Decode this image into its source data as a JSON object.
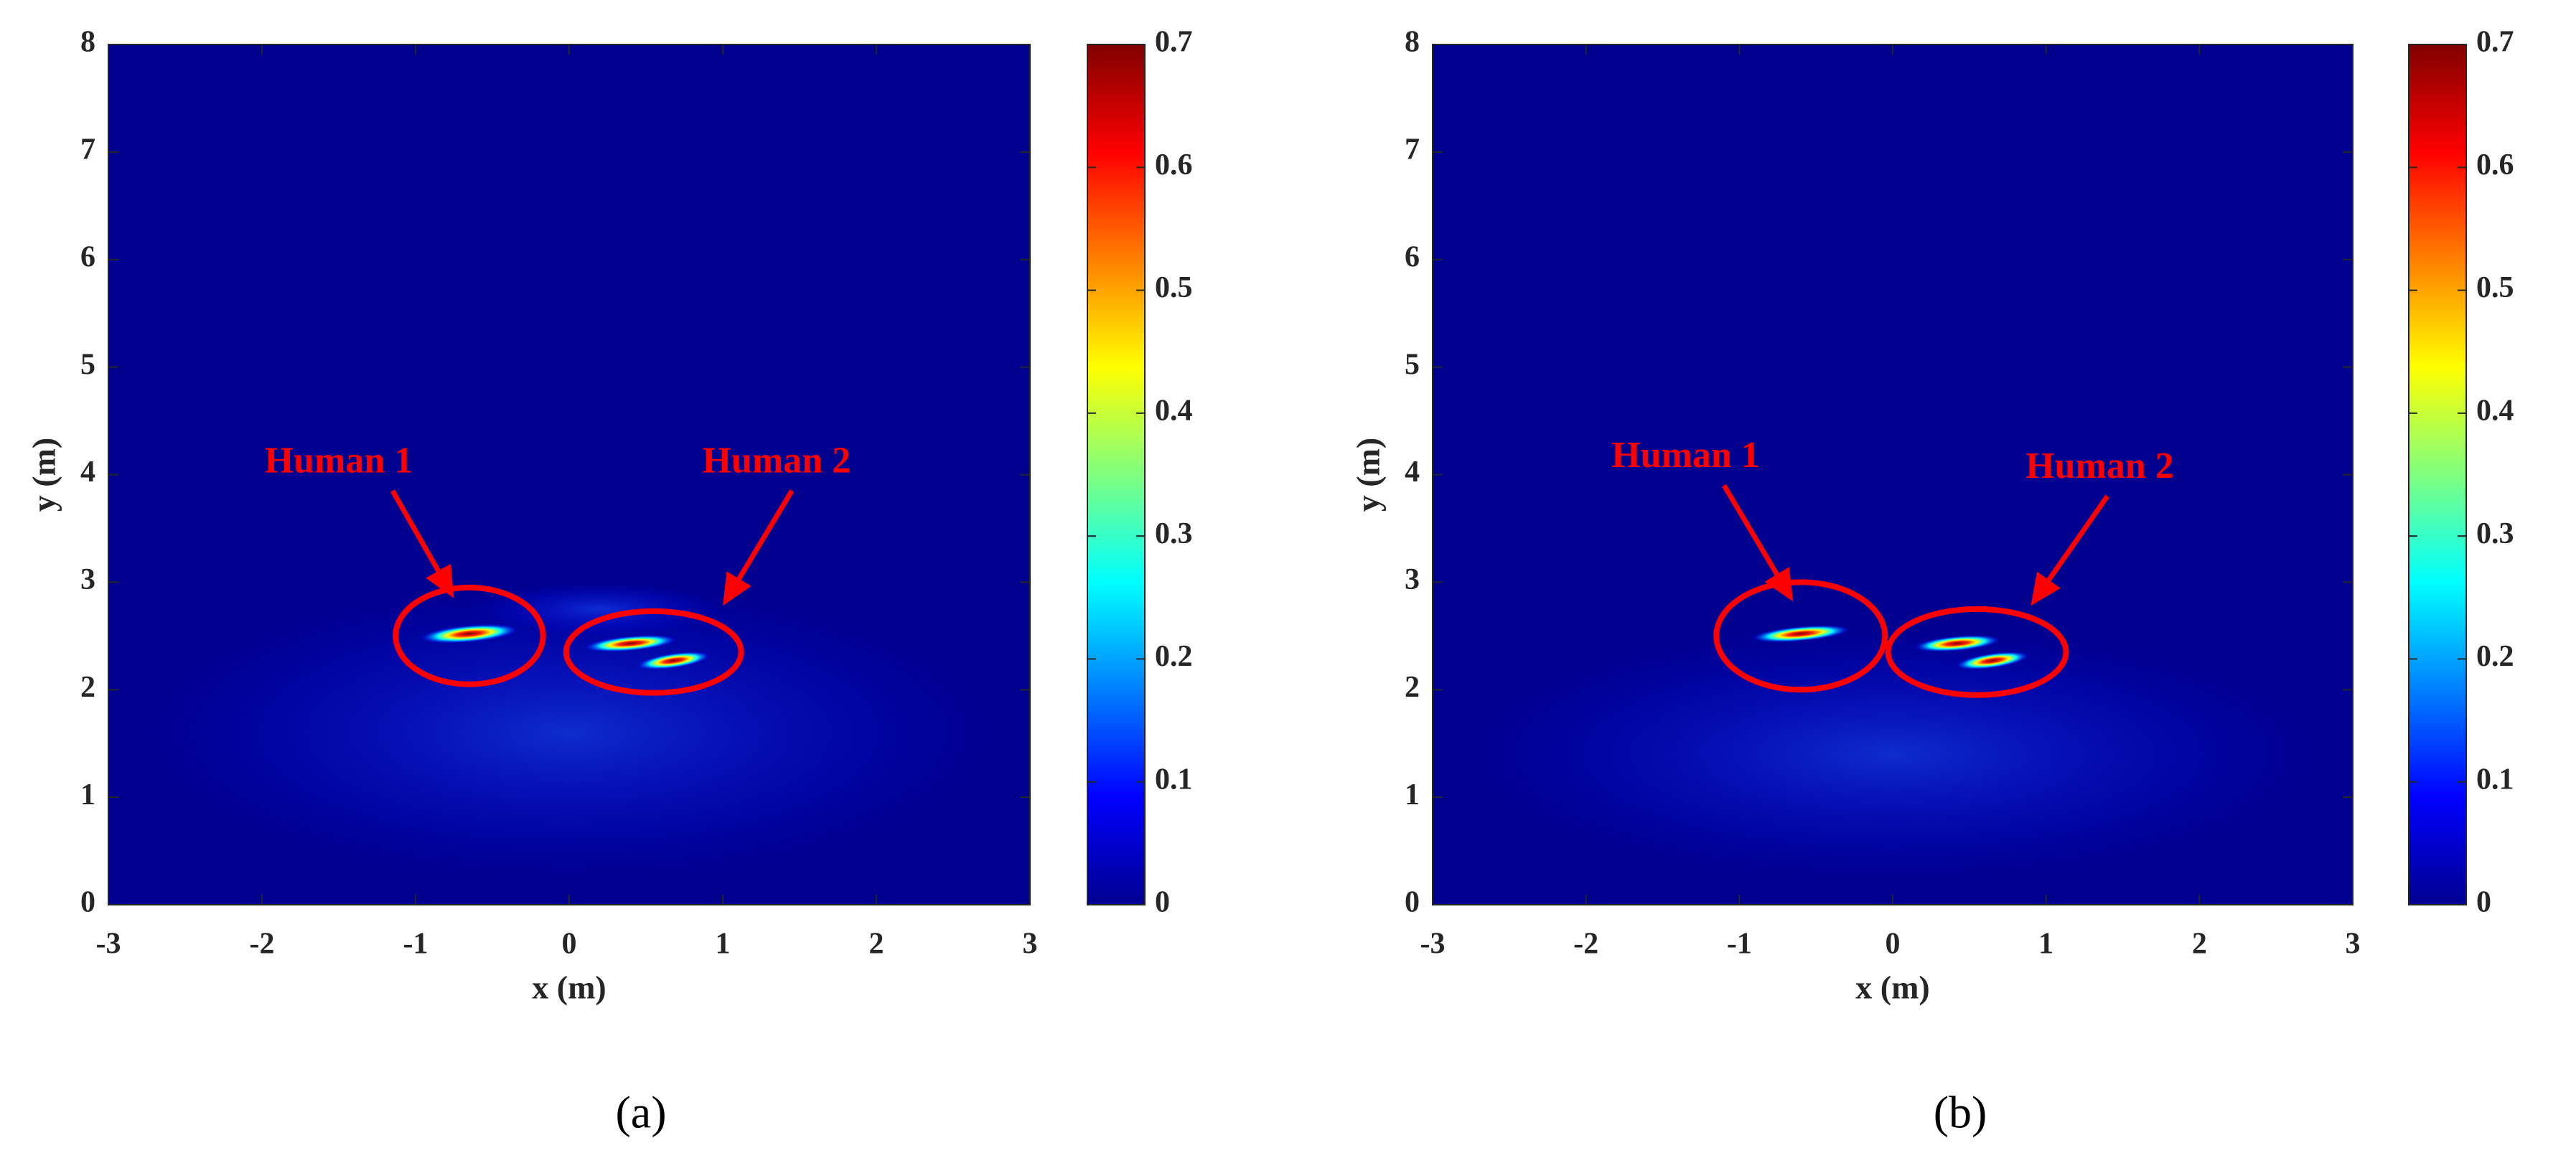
{
  "chart_data": [
    {
      "type": "heatmap",
      "xlabel": "x (m)",
      "ylabel": "y (m)",
      "xlim": [
        -3,
        3
      ],
      "xticks": [
        -3,
        -2,
        -1,
        0,
        1,
        2,
        3
      ],
      "ylim": [
        0,
        8
      ],
      "yticks": [
        0,
        1,
        2,
        3,
        4,
        5,
        6,
        7,
        8
      ],
      "colormap": "jet",
      "clim": [
        0,
        0.7
      ],
      "cticks": [
        0,
        0.1,
        0.2,
        0.3,
        0.4,
        0.5,
        0.6,
        0.7
      ],
      "annotations": [
        "Human 1",
        "Human 2"
      ],
      "annotation_color": "#ff0000",
      "caption": "(a)"
    },
    {
      "type": "heatmap",
      "xlabel": "x (m)",
      "ylabel": "y (m)",
      "xlim": [
        -3,
        3
      ],
      "xticks": [
        -3,
        -2,
        -1,
        0,
        1,
        2,
        3
      ],
      "ylim": [
        0,
        8
      ],
      "yticks": [
        0,
        1,
        2,
        3,
        4,
        5,
        6,
        7,
        8
      ],
      "colormap": "jet",
      "clim": [
        0,
        0.7
      ],
      "cticks": [
        0,
        0.1,
        0.2,
        0.3,
        0.4,
        0.5,
        0.6,
        0.7
      ],
      "annotations": [
        "Human 1",
        "Human 2"
      ],
      "annotation_color": "#ff0000",
      "caption": "(b)"
    }
  ]
}
